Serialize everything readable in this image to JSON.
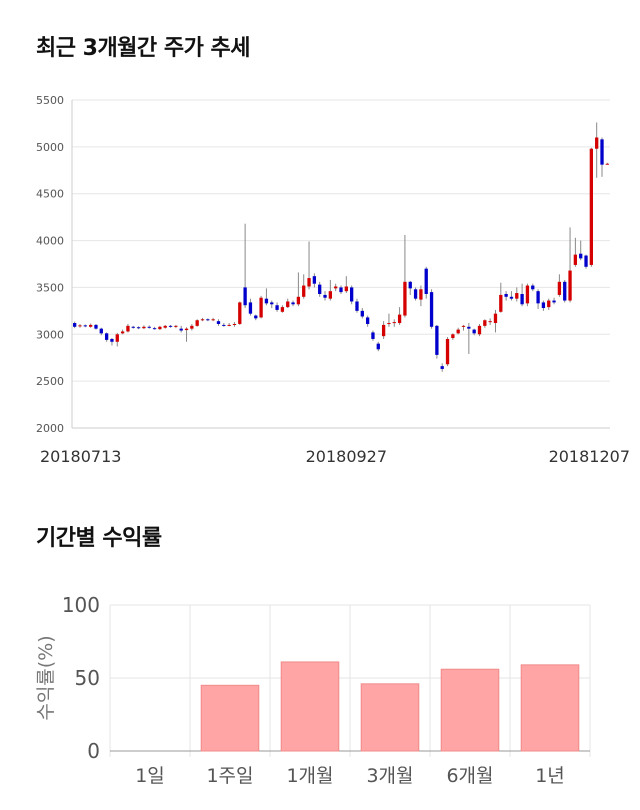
{
  "sections": {
    "price_title": "최근 3개월간 주가 추세",
    "returns_title": "기간별 수익률"
  },
  "colors": {
    "up": "#d50000",
    "down": "#0000cc",
    "grid": "#e6e6e6",
    "bar_fill": "#ffa5a5",
    "bar_stroke": "#f08a8a",
    "axis_text": "#555555"
  },
  "chart_data": [
    {
      "type": "candlestick",
      "title": "최근 3개월간 주가 추세",
      "ylim": [
        2000,
        5500
      ],
      "yticks": [
        2000,
        2500,
        3000,
        3500,
        4000,
        4500,
        5000,
        5500
      ],
      "xticks": [
        {
          "index": 0,
          "label": "20180713"
        },
        {
          "index": 51,
          "label": "20180927"
        },
        {
          "index": 101,
          "label": "20181207"
        }
      ],
      "candles": [
        [
          3120,
          3080,
          3135,
          3065
        ],
        [
          3085,
          3095,
          3110,
          3070
        ],
        [
          3095,
          3090,
          3105,
          3075
        ],
        [
          3080,
          3100,
          3115,
          3070
        ],
        [
          3100,
          3060,
          3110,
          3050
        ],
        [
          3060,
          3010,
          3070,
          2990
        ],
        [
          3010,
          2940,
          3020,
          2920
        ],
        [
          2950,
          2920,
          2960,
          2880
        ],
        [
          2920,
          3000,
          3015,
          2870
        ],
        [
          3010,
          3030,
          3050,
          3000
        ],
        [
          3030,
          3090,
          3110,
          3020
        ],
        [
          3080,
          3070,
          3090,
          3060
        ],
        [
          3075,
          3070,
          3085,
          3055
        ],
        [
          3065,
          3080,
          3095,
          3055
        ],
        [
          3080,
          3070,
          3095,
          3060
        ],
        [
          3065,
          3060,
          3080,
          3050
        ],
        [
          3055,
          3080,
          3090,
          3045
        ],
        [
          3070,
          3090,
          3100,
          3060
        ],
        [
          3090,
          3085,
          3100,
          3070
        ],
        [
          3080,
          3090,
          3100,
          3065
        ],
        [
          3060,
          3040,
          3090,
          3020
        ],
        [
          3045,
          3060,
          3075,
          2920
        ],
        [
          3060,
          3090,
          3110,
          3040
        ],
        [
          3090,
          3150,
          3160,
          3080
        ],
        [
          3155,
          3160,
          3175,
          3140
        ],
        [
          3160,
          3155,
          3170,
          3140
        ],
        [
          3155,
          3160,
          3175,
          3140
        ],
        [
          3140,
          3110,
          3160,
          3090
        ],
        [
          3100,
          3095,
          3120,
          3080
        ],
        [
          3095,
          3100,
          3120,
          3085
        ],
        [
          3100,
          3110,
          3130,
          3080
        ],
        [
          3110,
          3340,
          3350,
          3100
        ],
        [
          3500,
          3310,
          4180,
          3280
        ],
        [
          3340,
          3220,
          3380,
          3200
        ],
        [
          3200,
          3170,
          3210,
          3150
        ],
        [
          3180,
          3390,
          3410,
          3170
        ],
        [
          3380,
          3330,
          3490,
          3310
        ],
        [
          3340,
          3320,
          3360,
          3280
        ],
        [
          3310,
          3260,
          3340,
          3240
        ],
        [
          3240,
          3290,
          3310,
          3230
        ],
        [
          3290,
          3350,
          3380,
          3280
        ],
        [
          3340,
          3320,
          3360,
          3300
        ],
        [
          3320,
          3400,
          3660,
          3300
        ],
        [
          3400,
          3520,
          3640,
          3380
        ],
        [
          3510,
          3600,
          3990,
          3480
        ],
        [
          3620,
          3540,
          3650,
          3500
        ],
        [
          3530,
          3430,
          3560,
          3400
        ],
        [
          3420,
          3390,
          3460,
          3360
        ],
        [
          3380,
          3460,
          3580,
          3360
        ],
        [
          3490,
          3510,
          3540,
          3460
        ],
        [
          3500,
          3450,
          3520,
          3430
        ],
        [
          3460,
          3510,
          3620,
          3440
        ],
        [
          3500,
          3350,
          3520,
          3320
        ],
        [
          3350,
          3250,
          3380,
          3230
        ],
        [
          3250,
          3190,
          3280,
          3170
        ],
        [
          3180,
          3110,
          3200,
          3080
        ],
        [
          3020,
          2950,
          3040,
          2930
        ],
        [
          2900,
          2840,
          2920,
          2820
        ],
        [
          2980,
          3100,
          3140,
          2950
        ],
        [
          3120,
          3120,
          3220,
          3080
        ],
        [
          3130,
          3130,
          3160,
          3080
        ],
        [
          3120,
          3210,
          3290,
          3100
        ],
        [
          3200,
          3560,
          4060,
          3180
        ],
        [
          3560,
          3490,
          3570,
          3420
        ],
        [
          3480,
          3380,
          3500,
          3360
        ],
        [
          3370,
          3480,
          3520,
          3300
        ],
        [
          3700,
          3430,
          3720,
          3380
        ],
        [
          3450,
          3080,
          3480,
          3060
        ],
        [
          3090,
          2780,
          3100,
          2740
        ],
        [
          2660,
          2630,
          2690,
          2600
        ],
        [
          2680,
          2950,
          2970,
          2660
        ],
        [
          2960,
          3000,
          3010,
          2940
        ],
        [
          3010,
          3050,
          3070,
          3000
        ],
        [
          3080,
          3090,
          3100,
          3040
        ],
        [
          3080,
          3060,
          3120,
          2790
        ],
        [
          3050,
          3010,
          3060,
          2990
        ],
        [
          3000,
          3090,
          3110,
          2980
        ],
        [
          3090,
          3150,
          3160,
          3070
        ],
        [
          3140,
          3140,
          3170,
          3100
        ],
        [
          3120,
          3220,
          3260,
          3020
        ],
        [
          3240,
          3420,
          3550,
          3230
        ],
        [
          3430,
          3400,
          3460,
          3360
        ],
        [
          3400,
          3380,
          3460,
          3360
        ],
        [
          3380,
          3440,
          3500,
          3350
        ],
        [
          3430,
          3320,
          3540,
          3300
        ],
        [
          3330,
          3520,
          3540,
          3300
        ],
        [
          3520,
          3480,
          3540,
          3460
        ],
        [
          3460,
          3330,
          3480,
          3270
        ],
        [
          3340,
          3280,
          3360,
          3250
        ],
        [
          3290,
          3360,
          3380,
          3260
        ],
        [
          3360,
          3340,
          3390,
          3320
        ],
        [
          3420,
          3560,
          3640,
          3400
        ],
        [
          3560,
          3360,
          3580,
          3340
        ],
        [
          3360,
          3680,
          4140,
          3340
        ],
        [
          3740,
          3850,
          4030,
          3720
        ],
        [
          3860,
          3810,
          4000,
          3790
        ],
        [
          3840,
          3720,
          3850,
          3700
        ],
        [
          3740,
          4980,
          4990,
          3720
        ],
        [
          4980,
          5100,
          5260,
          4670
        ],
        [
          5080,
          4810,
          5100,
          4680
        ],
        [
          4820,
          4820,
          4830,
          4810
        ]
      ]
    },
    {
      "type": "bar",
      "title": "기간별 수익률",
      "ylabel": "수익률(%)",
      "ylim": [
        0,
        100
      ],
      "yticks": [
        0,
        50,
        100
      ],
      "categories": [
        "1일",
        "1주일",
        "1개월",
        "3개월",
        "6개월",
        "1년"
      ],
      "values": [
        0,
        45,
        61,
        46,
        56,
        59
      ]
    }
  ]
}
